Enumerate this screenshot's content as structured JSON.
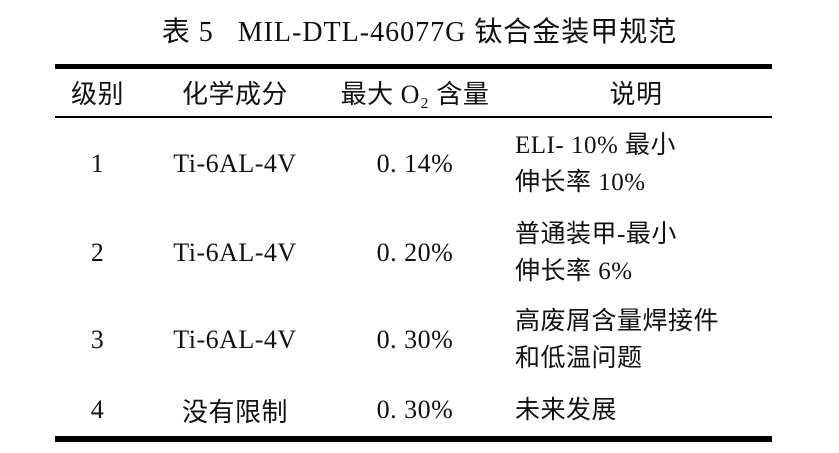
{
  "colors": {
    "background": "#ffffff",
    "text": "#111111",
    "rule": "#000000"
  },
  "chart_data": {
    "type": "table",
    "title": "表 5   MIL-DTL-46077G 钛合金装甲规范",
    "columns": [
      "级别",
      "化学成分",
      "最大 O₂ 含量",
      "说明"
    ],
    "rows": [
      [
        "1",
        "Ti-6AL-4V",
        "0. 14%",
        "ELI- 10% 最小\n伸长率 10%"
      ],
      [
        "2",
        "Ti-6AL-4V",
        "0. 20%",
        "普通装甲-最小\n伸长率 6%"
      ],
      [
        "3",
        "Ti-6AL-4V",
        "0. 30%",
        "高废屑含量焊接件\n和低温问题"
      ],
      [
        "4",
        "没有限制",
        "0. 30%",
        "未来发展"
      ]
    ],
    "layout": {
      "grid": "off",
      "header_rule": "thin",
      "outer_rules": "thick-top-bottom"
    }
  }
}
